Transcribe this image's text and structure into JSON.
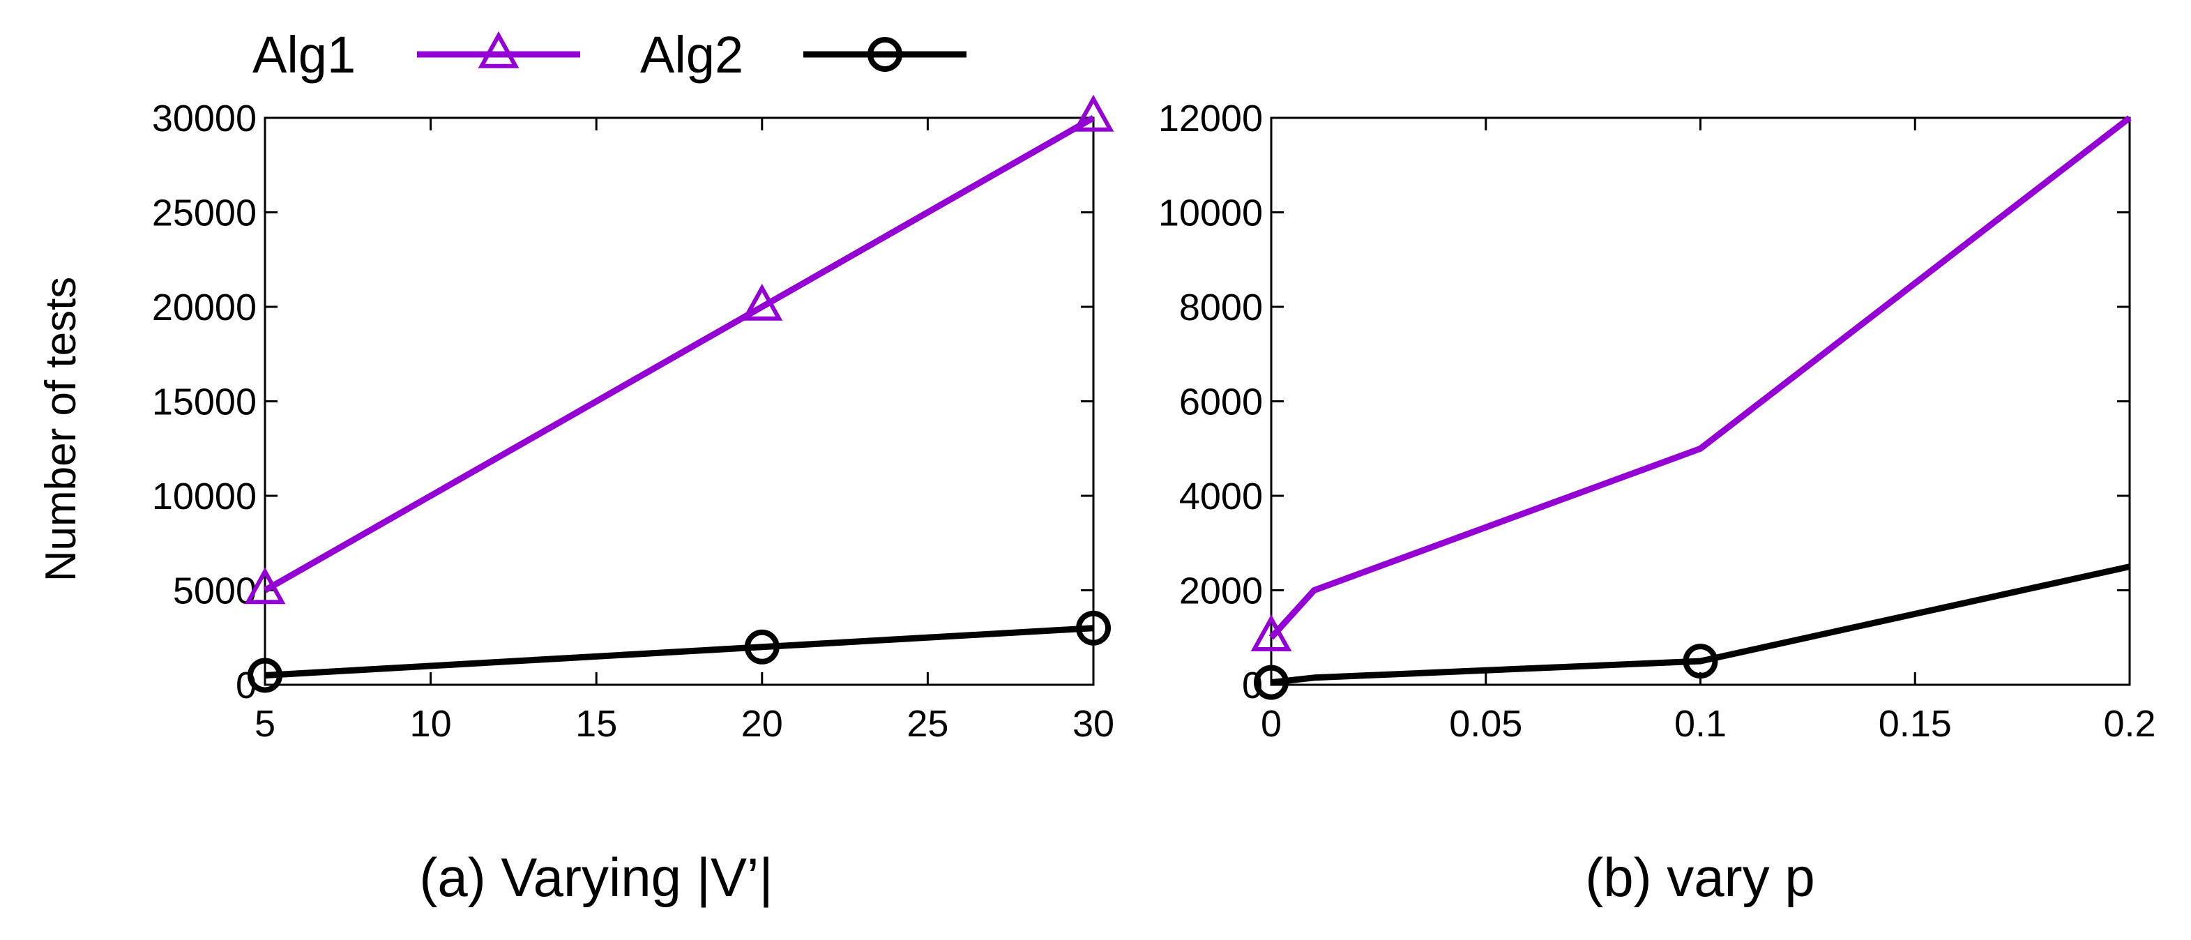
{
  "legend": [
    {
      "label": "Alg1",
      "color": "#9400d3",
      "marker": "triangle"
    },
    {
      "label": "Alg2",
      "color": "#000000",
      "marker": "circle"
    }
  ],
  "chart_data": [
    {
      "type": "line",
      "caption": "(a) Varying |V’|",
      "xlabel": "",
      "ylabel": "Number of tests",
      "xlim": [
        5,
        30
      ],
      "ylim": [
        0,
        30000
      ],
      "xticks": [
        5,
        10,
        15,
        20,
        25,
        30
      ],
      "yticks": [
        0,
        5000,
        10000,
        15000,
        20000,
        25000,
        30000
      ],
      "series": [
        {
          "name": "Alg1",
          "color": "#9400d3",
          "marker": "triangle",
          "points": [
            [
              5,
              5000
            ],
            [
              20,
              20000
            ],
            [
              30,
              30000
            ]
          ],
          "marker_x": [
            5,
            20,
            30
          ]
        },
        {
          "name": "Alg2",
          "color": "#000000",
          "marker": "circle",
          "points": [
            [
              5,
              500
            ],
            [
              20,
              2000
            ],
            [
              30,
              3000
            ]
          ],
          "marker_x": [
            5,
            20,
            30
          ]
        }
      ]
    },
    {
      "type": "line",
      "caption": "(b) vary p",
      "xlabel": "",
      "ylabel": "",
      "xlim": [
        0,
        0.2
      ],
      "ylim": [
        0,
        12000
      ],
      "xticks": [
        0,
        0.05,
        0.1,
        0.15,
        0.2
      ],
      "yticks": [
        0,
        2000,
        4000,
        6000,
        8000,
        10000,
        12000
      ],
      "series": [
        {
          "name": "Alg1",
          "color": "#9400d3",
          "marker": "triangle",
          "points": [
            [
              0,
              1000
            ],
            [
              0.01,
              2000
            ],
            [
              0.1,
              5000
            ],
            [
              0.2,
              12000
            ]
          ],
          "marker_x": [
            0
          ]
        },
        {
          "name": "Alg2",
          "color": "#000000",
          "marker": "circle",
          "points": [
            [
              0,
              50
            ],
            [
              0.01,
              150
            ],
            [
              0.1,
              500
            ],
            [
              0.2,
              2500
            ]
          ],
          "marker_x": [
            0,
            0.1
          ]
        }
      ]
    }
  ]
}
